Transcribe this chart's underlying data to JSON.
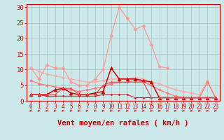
{
  "background_color": "#cce8e8",
  "grid_color": "#aacccc",
  "xlabel": "Vent moyen/en rafales ( km/h )",
  "xlabel_color": "#cc0000",
  "xlabel_fontsize": 7.5,
  "tick_color": "#cc0000",
  "yticks": [
    0,
    5,
    10,
    15,
    20,
    25,
    30
  ],
  "xlim": [
    -0.5,
    23.5
  ],
  "ylim": [
    0,
    31
  ],
  "series": [
    {
      "name": "light_pink_peak",
      "x": [
        0,
        1,
        2,
        3,
        4,
        5,
        6,
        7,
        8,
        9,
        10,
        11,
        12,
        13,
        14,
        15,
        16,
        17
      ],
      "y": [
        10.5,
        7.0,
        11.5,
        10.5,
        10.5,
        6.0,
        5.0,
        5.0,
        7.0,
        10.0,
        21.0,
        30.0,
        26.5,
        23.0,
        24.0,
        18.0,
        11.0,
        10.5
      ],
      "color": "#ff9999",
      "linewidth": 0.9,
      "marker": "D",
      "markersize": 2.5
    },
    {
      "name": "medium_pink_diagonal",
      "x": [
        0,
        1,
        2,
        3,
        4,
        5,
        6,
        7,
        8,
        9,
        10,
        11,
        12,
        13,
        14,
        15,
        16,
        17,
        18,
        19,
        20,
        21,
        22,
        23
      ],
      "y": [
        10.5,
        9.5,
        8.5,
        8.0,
        7.5,
        7.0,
        6.5,
        6.0,
        6.0,
        6.5,
        7.0,
        7.0,
        7.0,
        7.5,
        7.0,
        6.0,
        5.5,
        4.5,
        3.5,
        3.0,
        2.5,
        2.0,
        6.5,
        1.0
      ],
      "color": "#ffaaaa",
      "linewidth": 0.9,
      "marker": "D",
      "markersize": 2.0
    },
    {
      "name": "medium_red_mid",
      "x": [
        0,
        1,
        2,
        3,
        4,
        5,
        6,
        7,
        8,
        9,
        10,
        11,
        12,
        13,
        14,
        15,
        16,
        17,
        18,
        19,
        20,
        21,
        22,
        23
      ],
      "y": [
        6.5,
        5.5,
        5.0,
        4.5,
        4.0,
        3.5,
        3.0,
        3.5,
        4.0,
        4.5,
        5.5,
        6.0,
        6.0,
        6.5,
        6.0,
        5.0,
        3.5,
        2.5,
        1.5,
        1.0,
        1.0,
        1.0,
        6.0,
        1.0
      ],
      "color": "#ff7777",
      "linewidth": 0.9,
      "marker": "D",
      "markersize": 2.0
    },
    {
      "name": "dark_red_triangle_peak",
      "x": [
        0,
        1,
        2,
        3,
        4,
        5,
        6,
        7,
        8,
        9,
        10,
        11,
        12,
        13,
        14,
        15,
        16,
        17,
        18,
        19,
        20,
        21,
        22,
        23
      ],
      "y": [
        2.0,
        2.0,
        2.0,
        3.5,
        4.0,
        2.5,
        2.0,
        2.0,
        2.5,
        3.0,
        10.5,
        7.0,
        7.0,
        7.0,
        6.5,
        6.0,
        1.0,
        1.0,
        1.0,
        1.0,
        1.0,
        1.0,
        1.0,
        1.0
      ],
      "color": "#cc0000",
      "linewidth": 1.1,
      "marker": "^",
      "markersize": 3.5
    },
    {
      "name": "dark_red_flat1",
      "x": [
        0,
        1,
        2,
        3,
        4,
        5,
        6,
        7,
        8,
        9,
        10,
        11,
        12,
        13,
        14,
        15,
        16,
        17,
        18,
        19,
        20,
        21,
        22,
        23
      ],
      "y": [
        2.0,
        2.0,
        1.5,
        1.5,
        1.5,
        1.5,
        1.5,
        1.5,
        1.5,
        2.0,
        2.0,
        2.0,
        2.0,
        1.0,
        1.0,
        1.0,
        1.0,
        1.0,
        1.0,
        1.0,
        1.0,
        1.0,
        1.0,
        1.0
      ],
      "color": "#dd2222",
      "linewidth": 0.8,
      "marker": "D",
      "markersize": 1.5
    },
    {
      "name": "dark_red_mid2",
      "x": [
        0,
        1,
        2,
        3,
        4,
        5,
        6,
        7,
        8,
        9,
        10,
        11,
        12,
        13,
        14,
        15,
        16,
        17,
        18,
        19,
        20,
        21,
        22,
        23
      ],
      "y": [
        2.0,
        2.0,
        2.0,
        2.0,
        4.0,
        4.0,
        2.0,
        2.0,
        2.0,
        5.0,
        6.0,
        6.0,
        6.0,
        6.0,
        6.0,
        1.0,
        1.0,
        1.0,
        1.0,
        1.0,
        1.0,
        1.0,
        1.0,
        1.0
      ],
      "color": "#ee4444",
      "linewidth": 0.8,
      "marker": "D",
      "markersize": 1.5
    }
  ]
}
